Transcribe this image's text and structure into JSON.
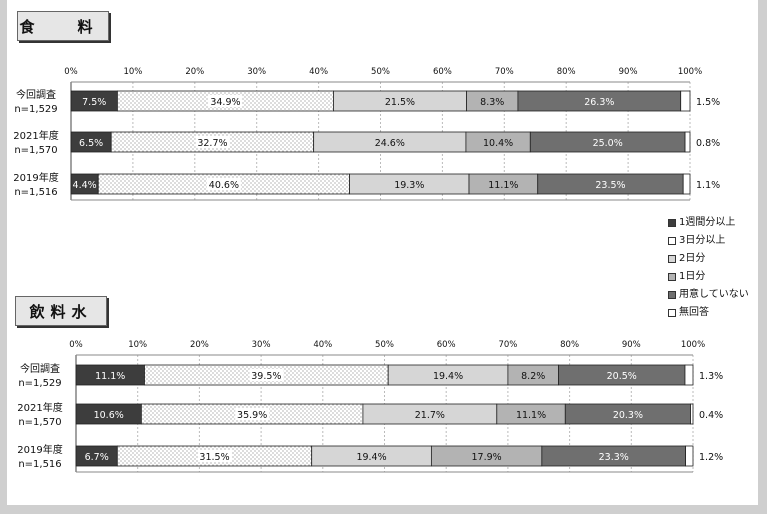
{
  "legend": {
    "items": [
      {
        "label": "1週間分以上",
        "color": "#3d3d3d"
      },
      {
        "label": "3日分以上",
        "color": "#ffffff",
        "pattern": "dots"
      },
      {
        "label": "2日分",
        "color": "#d6d6d6"
      },
      {
        "label": "1日分",
        "color": "#b3b3b3"
      },
      {
        "label": "用意していない",
        "color": "#6f6f6f"
      },
      {
        "label": "無回答",
        "color": "#ffffff"
      }
    ]
  },
  "chart_data": [
    {
      "type": "bar",
      "orientation": "horizontal",
      "stacked": "100%",
      "title": "食　料",
      "categories": [
        {
          "label": "今回調査",
          "n": "n=1,529"
        },
        {
          "label": "2021年度",
          "n": "n=1,570"
        },
        {
          "label": "2019年度",
          "n": "n=1,516"
        }
      ],
      "xlim": [
        0,
        100
      ],
      "x_ticks": [
        "0%",
        "10%",
        "20%",
        "30%",
        "40%",
        "50%",
        "60%",
        "70%",
        "80%",
        "90%",
        "100%"
      ],
      "series": [
        {
          "name": "1週間分以上",
          "values": [
            7.5,
            6.5,
            4.4
          ]
        },
        {
          "name": "3日分以上",
          "values": [
            34.9,
            32.7,
            40.6
          ]
        },
        {
          "name": "2日分",
          "values": [
            21.5,
            24.6,
            19.3
          ]
        },
        {
          "name": "1日分",
          "values": [
            8.3,
            10.4,
            11.1
          ]
        },
        {
          "name": "用意していない",
          "values": [
            26.3,
            25.0,
            23.5
          ]
        },
        {
          "name": "無回答",
          "values": [
            1.5,
            0.8,
            1.1
          ]
        }
      ]
    },
    {
      "type": "bar",
      "orientation": "horizontal",
      "stacked": "100%",
      "title": "飲料水",
      "categories": [
        {
          "label": "今回調査",
          "n": "n=1,529"
        },
        {
          "label": "2021年度",
          "n": "n=1,570"
        },
        {
          "label": "2019年度",
          "n": "n=1,516"
        }
      ],
      "xlim": [
        0,
        100
      ],
      "x_ticks": [
        "0%",
        "10%",
        "20%",
        "30%",
        "40%",
        "50%",
        "60%",
        "70%",
        "80%",
        "90%",
        "100%"
      ],
      "series": [
        {
          "name": "1週間分以上",
          "values": [
            11.1,
            10.6,
            6.7
          ]
        },
        {
          "name": "3日分以上",
          "values": [
            39.5,
            35.9,
            31.5
          ]
        },
        {
          "name": "2日分",
          "values": [
            19.4,
            21.7,
            19.4
          ]
        },
        {
          "name": "1日分",
          "values": [
            8.2,
            11.1,
            17.9
          ]
        },
        {
          "name": "用意していない",
          "values": [
            20.5,
            20.3,
            23.3
          ]
        },
        {
          "name": "無回答",
          "values": [
            1.3,
            0.4,
            1.2
          ]
        }
      ]
    }
  ]
}
